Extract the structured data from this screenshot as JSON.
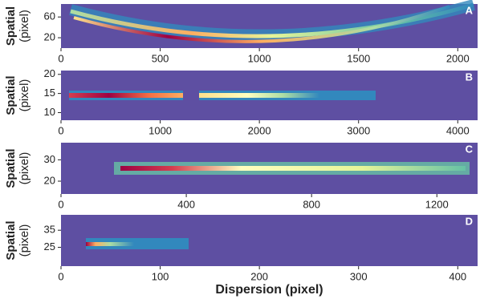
{
  "chart_data": [
    {
      "type": "heatmap",
      "panel_label": "A",
      "ylabel": "Spatial",
      "ylabel_unit": "(pixel)",
      "xlim": [
        0,
        2100
      ],
      "xticks": [
        0,
        500,
        1000,
        1500,
        2000
      ],
      "ylim": [
        0,
        85
      ],
      "yticks": [
        20,
        60
      ]
    },
    {
      "type": "heatmap",
      "panel_label": "B",
      "ylabel": "Spatial",
      "ylabel_unit": "(pixel)",
      "xlim": [
        0,
        4200
      ],
      "xticks": [
        0,
        1000,
        2000,
        3000,
        4000
      ],
      "ylim": [
        8,
        21
      ],
      "yticks": [
        10,
        15,
        20
      ]
    },
    {
      "type": "heatmap",
      "panel_label": "C",
      "ylabel": "Spatial",
      "ylabel_unit": "(pixel)",
      "xlim": [
        0,
        1330
      ],
      "xticks": [
        0,
        400,
        800,
        1200
      ],
      "ylim": [
        14,
        38
      ],
      "yticks": [
        20,
        30
      ]
    },
    {
      "type": "heatmap",
      "panel_label": "D",
      "ylabel": "Spatial",
      "ylabel_unit": "(pixel)",
      "xlim": [
        0,
        420
      ],
      "xticks": [
        0,
        100,
        200,
        300,
        400
      ],
      "ylim": [
        14,
        44
      ],
      "yticks": [
        25,
        35
      ],
      "xlabel": "Dispersion (pixel)"
    }
  ]
}
